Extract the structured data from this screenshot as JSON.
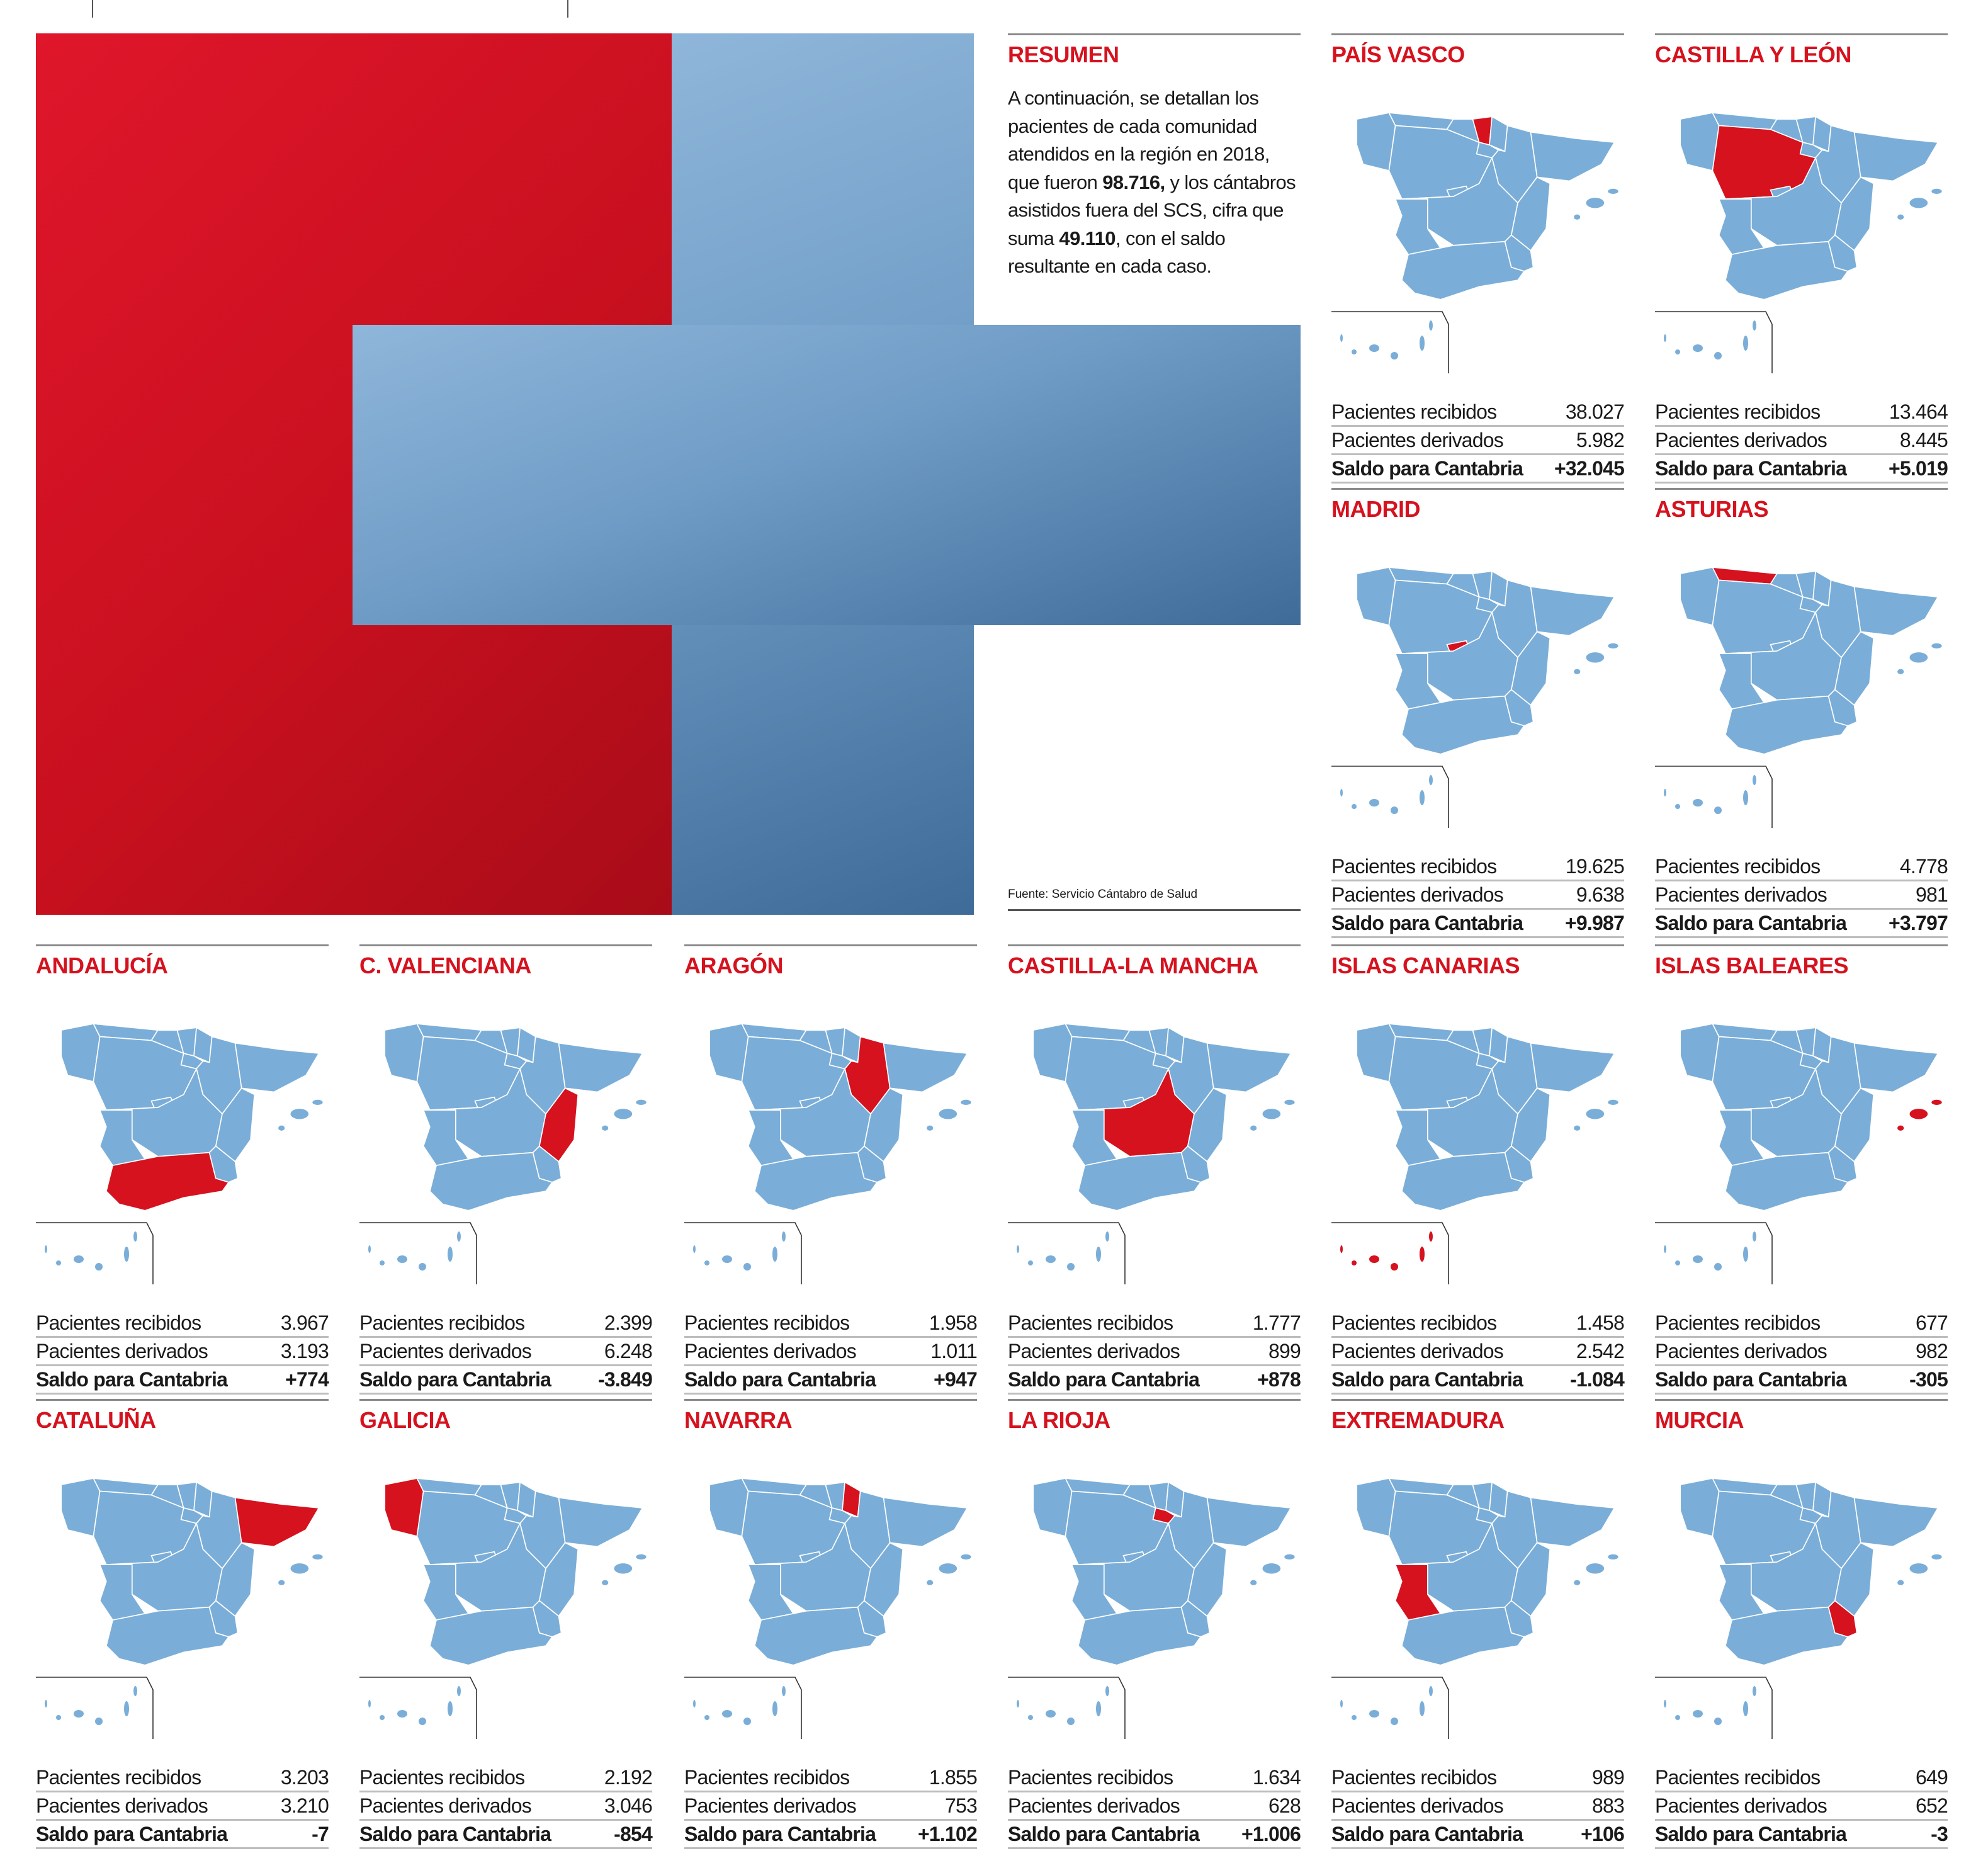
{
  "colors": {
    "accent": "#d5121e",
    "map_fill": "#7aaed8",
    "photo_red": "#d5121e",
    "photo_blue": "#7aa7d2"
  },
  "resumen": {
    "title": "RESUMEN",
    "text_1": "A continuación, se detallan los pacientes de cada comunidad atendidos en la región en 2018, que fueron ",
    "bold_1": "98.716,",
    "text_2": " y los cántabros asistidos fuera del SCS, cifra que suma ",
    "bold_2": "49.110",
    "text_3": ", con el saldo resultante en cada caso."
  },
  "source": "Fuente: Servicio Cántabro de Salud",
  "labels": {
    "received": "Pacientes recibidos",
    "derived": "Pacientes derivados",
    "balance": "Saldo para Cantabria"
  },
  "panels": [
    {
      "title": "PAÍS VASCO",
      "region": "pais_vasco",
      "received": "38.027",
      "derived": "5.982",
      "balance": "+32.045"
    },
    {
      "title": "CASTILLA Y LEÓN",
      "region": "castilla_leon",
      "received": "13.464",
      "derived": "8.445",
      "balance": "+5.019"
    },
    {
      "title": "MADRID",
      "region": "madrid",
      "received": "19.625",
      "derived": "9.638",
      "balance": "+9.987"
    },
    {
      "title": "ASTURIAS",
      "region": "asturias",
      "received": "4.778",
      "derived": "981",
      "balance": "+3.797"
    },
    {
      "title": "ANDALUCÍA",
      "region": "andalucia",
      "received": "3.967",
      "derived": "3.193",
      "balance": "+774"
    },
    {
      "title": "C. VALENCIANA",
      "region": "valenciana",
      "received": "2.399",
      "derived": "6.248",
      "balance": "-3.849"
    },
    {
      "title": "ARAGÓN",
      "region": "aragon",
      "received": "1.958",
      "derived": "1.011",
      "balance": "+947"
    },
    {
      "title": "CASTILLA-LA MANCHA",
      "region": "castilla_la_mancha",
      "received": "1.777",
      "derived": "899",
      "balance": "+878"
    },
    {
      "title": "ISLAS CANARIAS",
      "region": "canarias",
      "received": "1.458",
      "derived": "2.542",
      "balance": "-1.084"
    },
    {
      "title": "ISLAS BALEARES",
      "region": "baleares",
      "received": "677",
      "derived": "982",
      "balance": "-305"
    },
    {
      "title": "CATALUÑA",
      "region": "cataluna",
      "received": "3.203",
      "derived": "3.210",
      "balance": "-7"
    },
    {
      "title": "GALICIA",
      "region": "galicia",
      "received": "2.192",
      "derived": "3.046",
      "balance": "-854"
    },
    {
      "title": "NAVARRA",
      "region": "navarra",
      "received": "1.855",
      "derived": "753",
      "balance": "+1.102"
    },
    {
      "title": "LA RIOJA",
      "region": "la_rioja",
      "received": "1.634",
      "derived": "628",
      "balance": "+1.006"
    },
    {
      "title": "EXTREMADURA",
      "region": "extremadura",
      "received": "989",
      "derived": "883",
      "balance": "+106"
    },
    {
      "title": "MURCIA",
      "region": "murcia",
      "received": "649",
      "derived": "652",
      "balance": "-3"
    }
  ]
}
